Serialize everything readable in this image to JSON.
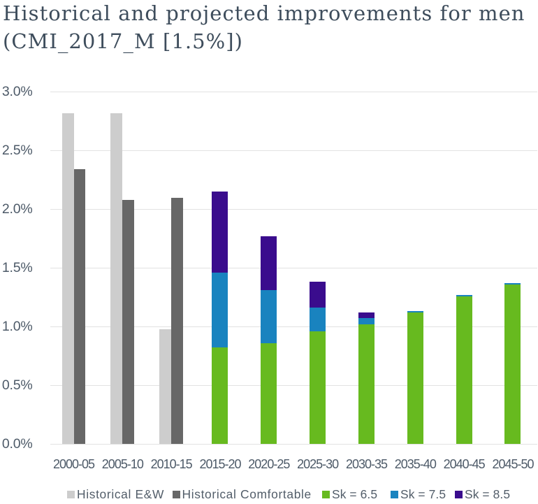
{
  "title": {
    "lines": [
      "Historical and projected improvements for men",
      "(CMI_2017_M [1.5%])"
    ]
  },
  "chart_data": {
    "type": "bar",
    "title": "Historical and projected improvements for men (CMI_2017_M [1.5%])",
    "categories": [
      "2000-05",
      "2005-10",
      "2010-15",
      "2015-20",
      "2020-25",
      "2025-30",
      "2030-35",
      "2035-40",
      "2040-45",
      "2045-50"
    ],
    "xlabel": "",
    "ylabel": "",
    "unit": "%",
    "ylim": [
      0,
      3.0
    ],
    "y_ticks": [
      "0.0%",
      "0.5%",
      "1.0%",
      "1.5%",
      "2.0%",
      "2.5%",
      "3.0%"
    ],
    "y_tick_values": [
      0,
      0.5,
      1.0,
      1.5,
      2.0,
      2.5,
      3.0
    ],
    "grid": "horizontal",
    "legend_position": "bottom",
    "series": [
      {
        "name": "Historical E&W",
        "color": "#cdcdcd",
        "layout": "grouped",
        "values": [
          2.82,
          2.82,
          0.98,
          null,
          null,
          null,
          null,
          null,
          null,
          null
        ]
      },
      {
        "name": "Historical Comfortable",
        "color": "#676767",
        "layout": "grouped",
        "values": [
          2.34,
          2.08,
          2.1,
          null,
          null,
          null,
          null,
          null,
          null,
          null
        ]
      },
      {
        "name": "Sk = 8.5",
        "color": "#3a0c8d",
        "layout": "overlay",
        "values": [
          null,
          null,
          null,
          2.15,
          1.77,
          1.38,
          1.12,
          null,
          null,
          null
        ]
      },
      {
        "name": "Sk = 7.5",
        "color": "#1983bf",
        "layout": "overlay",
        "values": [
          null,
          null,
          null,
          1.46,
          1.31,
          1.16,
          1.07,
          1.13,
          1.27,
          1.37
        ]
      },
      {
        "name": "Sk = 6.5",
        "color": "#67ba1f",
        "layout": "overlay",
        "values": [
          null,
          null,
          null,
          0.82,
          0.86,
          0.96,
          1.02,
          1.12,
          1.26,
          1.36
        ]
      }
    ]
  },
  "legend": {
    "items": [
      {
        "label": "Historical E&W",
        "color": "#cdcdcd"
      },
      {
        "label": "Historical Comfortable",
        "color": "#676767"
      },
      {
        "label": "Sk = 6.5",
        "color": "#67ba1f"
      },
      {
        "label": "Sk = 7.5",
        "color": "#1983bf"
      },
      {
        "label": "Sk = 8.5",
        "color": "#3a0c8d"
      }
    ]
  }
}
